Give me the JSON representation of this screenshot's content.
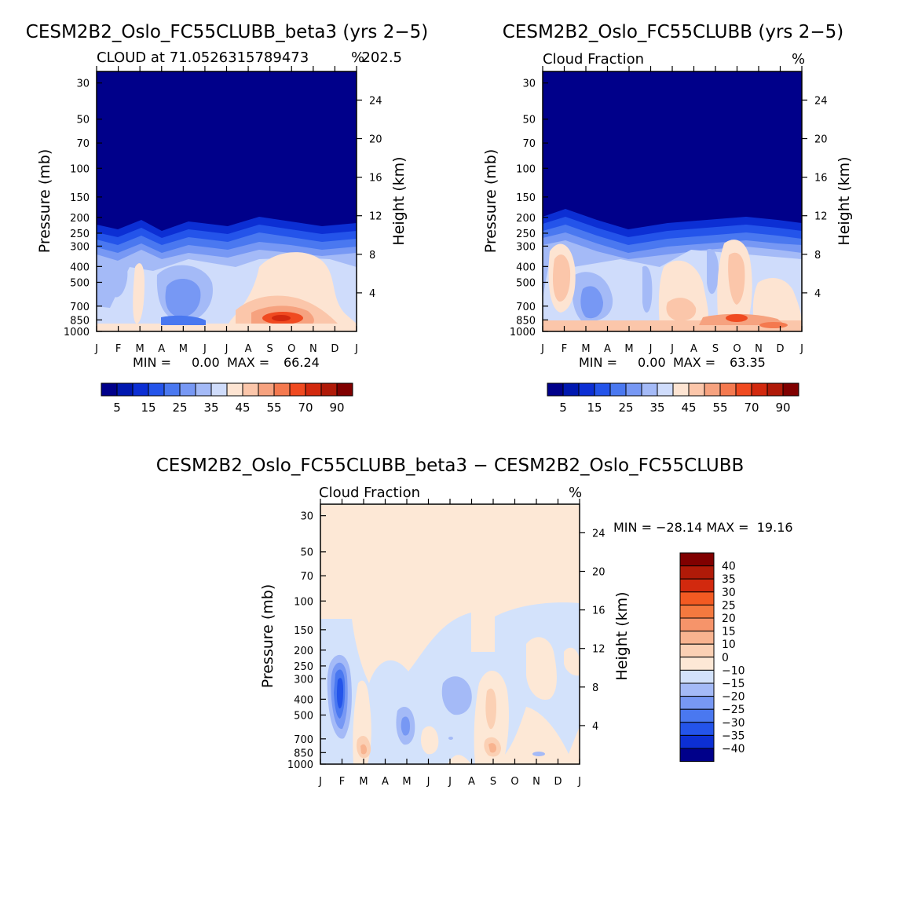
{
  "colors": {
    "base_scale": [
      "#00008a",
      "#0018b0",
      "#0c2fd4",
      "#2454ea",
      "#4a78f0",
      "#7798f4",
      "#a4baf7",
      "#cfdcfb",
      "#fde4d2",
      "#fbc6aa",
      "#f6a27f",
      "#f4794f",
      "#f04a20",
      "#d2290e",
      "#b01a08",
      "#800000"
    ],
    "diff_scale": [
      "#00008a",
      "#0c2fd4",
      "#2454ea",
      "#4a78f0",
      "#7798f4",
      "#a4baf7",
      "#d3e2fb",
      "#fde8d6",
      "#fbd0b4",
      "#f8b38f",
      "#f6946a",
      "#f4793f",
      "#f25a22",
      "#d2290e",
      "#b01a08",
      "#800000"
    ]
  },
  "chart_data": [
    {
      "type": "contour",
      "title": "CESM2B2_Oslo_FC55CLUBB_beta3 (yrs 2−5)",
      "subtitle": "CLOUD at 71.0526315789473",
      "subtitle_right": "202.5",
      "units": "%",
      "ylabel": "Pressure (mb)",
      "ylabel_right": "Height (km)",
      "pressure_ticks": [
        "30",
        "50",
        "70",
        "100",
        "150",
        "200",
        "250",
        "300",
        "400",
        "500",
        "700",
        "850",
        "1000"
      ],
      "height_ticks": [
        "24",
        "20",
        "16",
        "12",
        "8",
        "4"
      ],
      "months": [
        "J",
        "F",
        "M",
        "A",
        "M",
        "J",
        "J",
        "A",
        "S",
        "O",
        "N",
        "D",
        "J"
      ],
      "min_label": "MIN =",
      "min_value": "0.00",
      "max_label": "MAX =",
      "max_value": "66.24",
      "legend_labels": [
        "5",
        "15",
        "25",
        "35",
        "45",
        "55",
        "70",
        "90"
      ]
    },
    {
      "type": "contour",
      "title": "CESM2B2_Oslo_FC55CLUBB (yrs 2−5)",
      "subtitle": "Cloud Fraction",
      "subtitle_right": "",
      "units": "%",
      "ylabel": "Pressure (mb)",
      "ylabel_right": "Height (km)",
      "pressure_ticks": [
        "30",
        "50",
        "70",
        "100",
        "150",
        "200",
        "250",
        "300",
        "400",
        "500",
        "700",
        "850",
        "1000"
      ],
      "height_ticks": [
        "24",
        "20",
        "16",
        "12",
        "8",
        "4"
      ],
      "months": [
        "J",
        "F",
        "M",
        "A",
        "M",
        "J",
        "J",
        "A",
        "S",
        "O",
        "N",
        "D",
        "J"
      ],
      "min_label": "MIN =",
      "min_value": "0.00",
      "max_label": "MAX =",
      "max_value": "63.35",
      "legend_labels": [
        "5",
        "15",
        "25",
        "35",
        "45",
        "55",
        "70",
        "90"
      ]
    },
    {
      "type": "contour",
      "title": "CESM2B2_Oslo_FC55CLUBB_beta3 − CESM2B2_Oslo_FC55CLUBB",
      "subtitle": "Cloud Fraction",
      "subtitle_right": "",
      "units": "%",
      "ylabel": "Pressure (mb)",
      "ylabel_right": "Height (km)",
      "pressure_ticks": [
        "30",
        "50",
        "70",
        "100",
        "150",
        "200",
        "250",
        "300",
        "400",
        "500",
        "700",
        "850",
        "1000"
      ],
      "height_ticks": [
        "24",
        "20",
        "16",
        "12",
        "8",
        "4"
      ],
      "months": [
        "J",
        "F",
        "M",
        "A",
        "M",
        "J",
        "J",
        "A",
        "S",
        "O",
        "N",
        "D",
        "J"
      ],
      "minmax_text": "MIN = −28.14 MAX =  19.16",
      "legend_labels": [
        "40",
        "35",
        "30",
        "25",
        "20",
        "15",
        "10",
        "0",
        "−10",
        "−15",
        "−20",
        "−25",
        "−30",
        "−35",
        "−40"
      ]
    }
  ]
}
